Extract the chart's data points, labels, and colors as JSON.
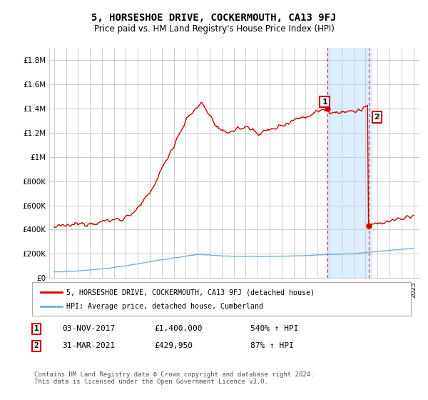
{
  "title": "5, HORSESHOE DRIVE, COCKERMOUTH, CA13 9FJ",
  "subtitle": "Price paid vs. HM Land Registry's House Price Index (HPI)",
  "legend_line1": "5, HORSESHOE DRIVE, COCKERMOUTH, CA13 9FJ (detached house)",
  "legend_line2": "HPI: Average price, detached house, Cumberland",
  "annotation1_num": "1",
  "annotation1_date": "03-NOV-2017",
  "annotation1_price": "£1,400,000",
  "annotation1_hpi": "540% ↑ HPI",
  "annotation2_num": "2",
  "annotation2_date": "31-MAR-2021",
  "annotation2_price": "£429,950",
  "annotation2_hpi": "87% ↑ HPI",
  "footer": "Contains HM Land Registry data © Crown copyright and database right 2024.\nThis data is licensed under the Open Government Licence v3.0.",
  "red_color": "#cc0000",
  "blue_color": "#7ab0d4",
  "shade_color": "#ddeeff",
  "background_color": "#ffffff",
  "grid_color": "#cccccc",
  "ylim": [
    0,
    1900000
  ],
  "yticks": [
    0,
    200000,
    400000,
    600000,
    800000,
    1000000,
    1200000,
    1400000,
    1600000,
    1800000
  ],
  "ytick_labels": [
    "£0",
    "£200K",
    "£400K",
    "£600K",
    "£800K",
    "£1M",
    "£1.2M",
    "£1.4M",
    "£1.6M",
    "£1.8M"
  ],
  "shade_xmin": 2017.75,
  "shade_xmax": 2021.5,
  "point1_x": 2017.84,
  "point1_y": 1400000,
  "point2_x": 2021.25,
  "point2_y": 429950,
  "xmin": 1995,
  "xmax": 2025
}
